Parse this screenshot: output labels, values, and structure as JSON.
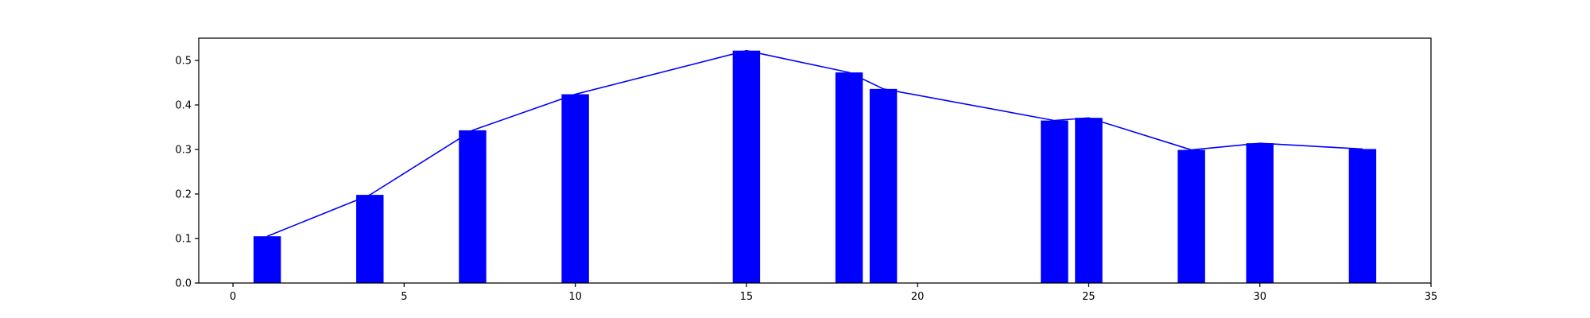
{
  "chart_data": {
    "type": "bar",
    "title": "",
    "xlabel": "",
    "ylabel": "",
    "xlim": [
      -1,
      35
    ],
    "ylim": [
      0,
      0.55
    ],
    "xticks": [
      0,
      5,
      10,
      15,
      20,
      25,
      30,
      35
    ],
    "xtick_labels": [
      "0",
      "5",
      "10",
      "15",
      "20",
      "25",
      "30",
      "35"
    ],
    "yticks": [
      0.0,
      0.1,
      0.2,
      0.3,
      0.4,
      0.5
    ],
    "ytick_labels": [
      "0.0",
      "0.1",
      "0.2",
      "0.3",
      "0.4",
      "0.5"
    ],
    "grid": false,
    "bar_width": 0.8,
    "color": "#0000ff",
    "x": [
      1,
      4,
      7,
      10,
      15,
      18,
      19,
      24,
      25,
      28,
      30,
      33
    ],
    "values": [
      0.105,
      0.198,
      0.343,
      0.424,
      0.522,
      0.473,
      0.436,
      0.365,
      0.371,
      0.299,
      0.314,
      0.301
    ],
    "overlay_line": {
      "type": "line",
      "color": "#0000ff",
      "x": [
        1,
        4,
        7,
        10,
        15,
        18,
        19,
        24,
        25,
        28,
        30,
        33
      ],
      "values": [
        0.105,
        0.198,
        0.343,
        0.424,
        0.522,
        0.473,
        0.436,
        0.365,
        0.371,
        0.299,
        0.314,
        0.301
      ]
    }
  }
}
